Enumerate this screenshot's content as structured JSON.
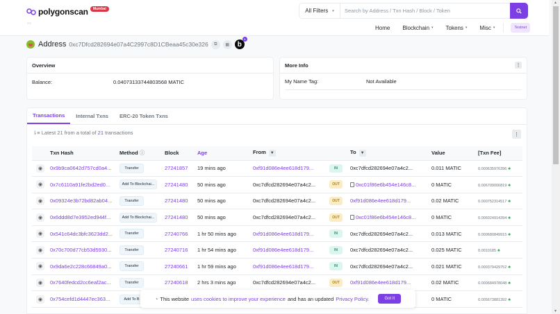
{
  "header": {
    "logo_text": "polygonscan",
    "network_badge": "Mumbai",
    "filter_label": "All Filters",
    "search_placeholder": "Search by Address / Txn Hash / Block / Token",
    "nav": {
      "home": "Home",
      "blockchain": "Blockchain",
      "tokens": "Tokens",
      "misc": "Misc",
      "testnet": "Testnet"
    }
  },
  "address": {
    "label": "Address",
    "hash": "0xc7Dfcd282694e07a4C2997c8D1CBeaa45c30e326",
    "notification_count": "1"
  },
  "overview": {
    "title": "Overview",
    "balance_label": "Balance:",
    "balance_value": "0.04073133744803568 MATIC"
  },
  "more_info": {
    "title": "More Info",
    "name_tag_label": "My Name Tag:",
    "name_tag_value": "Not Available"
  },
  "tabs": [
    {
      "label": "Transactions",
      "active": true
    },
    {
      "label": "Internal Txns",
      "active": false
    },
    {
      "label": "ERC-20 Token Txns",
      "active": false
    }
  ],
  "summary": {
    "prefix": "Latest 21 from a total of",
    "count": "21",
    "suffix": "transactions"
  },
  "table": {
    "columns": {
      "txn_hash": "Txn Hash",
      "method": "Method",
      "block": "Block",
      "age": "Age",
      "from": "From",
      "to": "To",
      "value": "Value",
      "fee": "[Txn Fee]"
    },
    "rows": [
      {
        "hash": "0x9b9ca0642d757cd0a4...",
        "method": "Transfer",
        "block": "27241857",
        "age": "19 mins ago",
        "from": "0xf91d086e4ee618d179...",
        "dir": "IN",
        "to": "0xc7dfcd282694e07a4c2...",
        "value": "0.011 MATIC",
        "fee": "0.000635976396"
      },
      {
        "hash": "0x7c6110a91fe2bd2ed0...",
        "method": "Add To Blockchai...",
        "block": "27241480",
        "age": "50 mins ago",
        "from": "0xc7dfcd282694e07a4c2...",
        "dir": "OUT",
        "to": "0xc01f86e6b454e146c8...",
        "value": "0 MATIC",
        "fee": "0.006709006819"
      },
      {
        "hash": "0x09324e3b72bd82ab04...",
        "method": "Transfer",
        "block": "27241480",
        "age": "50 mins ago",
        "from": "0xc7dfcd282694e07a4c2...",
        "dir": "OUT",
        "to": "0xf91d086e4ee618d179...",
        "value": "0.02 MATIC",
        "fee": "0.000752314517"
      },
      {
        "hash": "0x6ddd8d7e3952ed944f...",
        "method": "Add To Blockchai...",
        "block": "27241480",
        "age": "50 mins ago",
        "from": "0xc7dfcd282694e07a4c2...",
        "dir": "OUT",
        "to": "0xc01f86e6b454e146c8...",
        "value": "0 MATIC",
        "fee": "0.006024914394"
      },
      {
        "hash": "0x541c64dc3bfc3623dd2...",
        "method": "Transfer",
        "block": "27240766",
        "age": "1 hr 50 mins ago",
        "from": "0xf91d086e4ee618d179...",
        "dir": "IN",
        "to": "0xc7dfcd282694e07a4c2...",
        "value": "0.013 MATIC",
        "fee": "0.000680849915"
      },
      {
        "hash": "0x70c700d77cb53d5930...",
        "method": "Transfer",
        "block": "27240716",
        "age": "1 hr 54 mins ago",
        "from": "0xf91d086e4ee618d179...",
        "dir": "IN",
        "to": "0xc7dfcd282694e07a4c2...",
        "value": "0.025 MATIC",
        "fee": "0.0010185"
      },
      {
        "hash": "0x9da6e2c228c66849a0...",
        "method": "Transfer",
        "block": "27240661",
        "age": "1 hr 59 mins ago",
        "from": "0xf91d086e4ee618d179...",
        "dir": "IN",
        "to": "0xc7dfcd282694e07a4c2...",
        "value": "0.021 MATIC",
        "fee": "0.000379429752"
      },
      {
        "hash": "0x7640fedcd2cc6eaf2ac...",
        "method": "Transfer",
        "block": "27240618",
        "age": "2 hrs 3 mins ago",
        "from": "0xc7dfcd282694e07a4c2...",
        "dir": "OUT",
        "to": "0xf91d086e4ee618d179...",
        "value": "0.02 MATIC",
        "fee": "0.000684978048"
      },
      {
        "hash": "0x754cefd1d4447ec363...",
        "method": "Add To B",
        "block": "",
        "age": "",
        "from": "",
        "dir": "",
        "to": "",
        "value": "0 MATIC",
        "fee": "0.005673881392"
      }
    ]
  },
  "cookie_banner": {
    "text1": "This website",
    "link1": "uses cookies to improve your experience",
    "text2": "and has an updated",
    "link2": "Privacy Policy.",
    "button": "Got It"
  }
}
